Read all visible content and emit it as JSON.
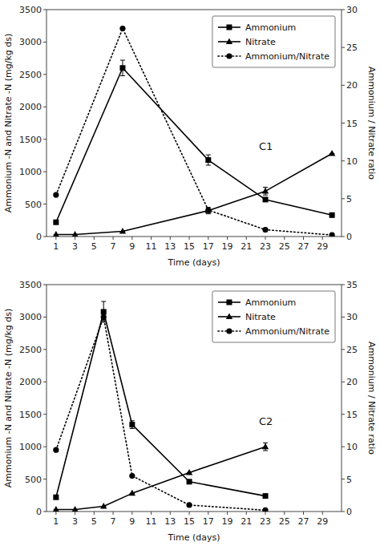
{
  "chart_data": [
    {
      "type": "line",
      "xlabel": "Time (days)",
      "ylabel": "Ammonium -N and Nitrate -N (mg/kg ds)",
      "y2label": "Ammonium / Nitrate ratio",
      "xlim": [
        0,
        31
      ],
      "xticks": [
        1,
        3,
        5,
        7,
        9,
        11,
        13,
        15,
        17,
        19,
        21,
        23,
        25,
        27,
        29
      ],
      "ylim": [
        0,
        3500
      ],
      "yticks": [
        0,
        500,
        1000,
        1500,
        2000,
        2500,
        3000,
        3500
      ],
      "y2lim": [
        0,
        30
      ],
      "y2ticks": [
        0,
        5,
        10,
        15,
        20,
        25,
        30
      ],
      "grid": false,
      "legend": "upper right",
      "annotations": [
        "C1"
      ],
      "series": [
        {
          "name": "Ammonium",
          "color": "black",
          "marker": "square",
          "line_style": "solid",
          "x": [
            1,
            8,
            17,
            23,
            30
          ],
          "values": [
            220,
            2600,
            1180,
            570,
            330
          ],
          "errors": [
            0,
            120,
            80,
            0,
            0
          ]
        },
        {
          "name": "Nitrate",
          "color": "black",
          "marker": "triangle",
          "line_style": "solid",
          "x": [
            1,
            3,
            8,
            17,
            23,
            30
          ],
          "values": [
            30,
            30,
            80,
            400,
            700,
            1280
          ],
          "errors": [
            0,
            0,
            0,
            50,
            60,
            0
          ]
        },
        {
          "name": "Ammonium/Nitrate",
          "color": "black",
          "marker": "circle",
          "line_style": "dotted",
          "axis": "y2",
          "x": [
            1,
            8,
            17,
            23,
            30
          ],
          "values": [
            5.5,
            27.5,
            3.5,
            0.9,
            0.2
          ]
        }
      ]
    },
    {
      "type": "line",
      "xlabel": "Time (days)",
      "ylabel": "Ammonium -N and Nitrate -N (mg/kg ds)",
      "y2label": "Ammonium / Nitrate ratio",
      "xlim": [
        0,
        31
      ],
      "xticks": [
        1,
        3,
        5,
        7,
        9,
        11,
        13,
        15,
        17,
        19,
        21,
        23,
        25,
        27,
        29
      ],
      "ylim": [
        0,
        3500
      ],
      "yticks": [
        0,
        500,
        1000,
        1500,
        2000,
        2500,
        3000,
        3500
      ],
      "y2lim": [
        0,
        35
      ],
      "y2ticks": [
        0,
        5,
        10,
        15,
        20,
        25,
        30,
        35
      ],
      "grid": false,
      "legend": "upper right",
      "annotations": [
        "C2"
      ],
      "series": [
        {
          "name": "Ammonium",
          "color": "black",
          "marker": "square",
          "line_style": "solid",
          "x": [
            1,
            6,
            9,
            15,
            23
          ],
          "values": [
            220,
            3080,
            1340,
            460,
            240
          ],
          "errors": [
            0,
            160,
            60,
            0,
            0
          ]
        },
        {
          "name": "Nitrate",
          "color": "black",
          "marker": "triangle",
          "line_style": "solid",
          "x": [
            1,
            3,
            6,
            9,
            15,
            23
          ],
          "values": [
            30,
            30,
            80,
            280,
            600,
            1000
          ],
          "errors": [
            0,
            0,
            0,
            0,
            0,
            60
          ]
        },
        {
          "name": "Ammonium/Nitrate",
          "color": "black",
          "marker": "circle",
          "line_style": "dotted",
          "axis": "y2",
          "x": [
            1,
            6,
            9,
            15,
            23
          ],
          "values": [
            9.5,
            30,
            5.5,
            1.0,
            0.2
          ]
        }
      ]
    }
  ]
}
